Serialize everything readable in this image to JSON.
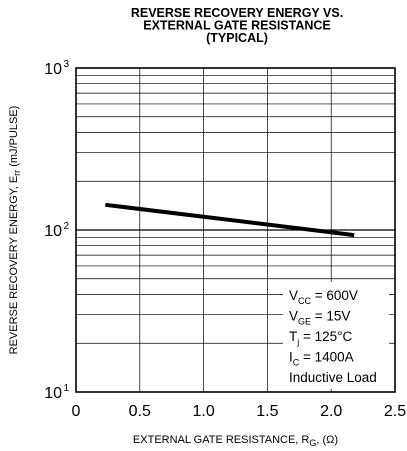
{
  "chart_data": {
    "type": "line",
    "title_lines": [
      "REVERSE RECOVERY ENERGY VS.",
      "EXTERNAL GATE RESISTANCE",
      "(TYPICAL)"
    ],
    "xlabel": {
      "main": "EXTERNAL GATE RESISTANCE, R",
      "sub": "G",
      "unit": ", (Ω)"
    },
    "ylabel": {
      "main": "REVERSE RECOVERY ENERGY, E",
      "sub": "rr",
      "unit": " (mJ/PULSE)"
    },
    "x_range": [
      0,
      2.5
    ],
    "x_ticks": [
      0,
      0.5,
      1.0,
      1.5,
      2.0,
      2.5
    ],
    "x_tick_labels": [
      "0",
      "0.5",
      "1.0",
      "1.5",
      "2.0",
      "2.5"
    ],
    "y_scale": "log",
    "y_range": [
      10,
      1000
    ],
    "y_ticks": [
      {
        "base": "10",
        "exp": "1"
      },
      {
        "base": "10",
        "exp": "2"
      },
      {
        "base": "10",
        "exp": "3"
      }
    ],
    "grid": true,
    "series": [
      {
        "x": [
          0.23,
          2.18
        ],
        "y": [
          143,
          93
        ]
      }
    ],
    "conditions": [
      {
        "main": "V",
        "sub": "CC",
        "rest": " = 600V"
      },
      {
        "main": "V",
        "sub": "GE",
        "rest": " = 15V"
      },
      {
        "main": "T",
        "sub": "j",
        "rest": " = 125°C"
      },
      {
        "main": "I",
        "sub": "C",
        "rest": " = 1400A"
      },
      {
        "main": "Inductive Load",
        "sub": "",
        "rest": ""
      }
    ]
  }
}
